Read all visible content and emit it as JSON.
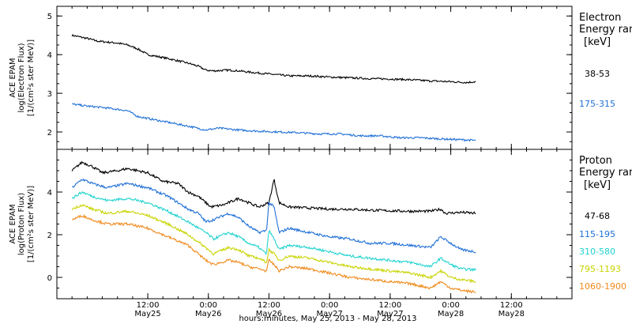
{
  "chart_data": {
    "type": "line",
    "x_axis": {
      "title": "hours:minutes, May 25, 2013 - May 28, 2013",
      "range_hours": [
        0,
        102
      ],
      "ticks": [
        {
          "hours": 18,
          "time": "12:00",
          "day": "May25"
        },
        {
          "hours": 30,
          "time": "0:00",
          "day": "May26"
        },
        {
          "hours": 42,
          "time": "12:00",
          "day": "May26"
        },
        {
          "hours": 54,
          "time": "0:00",
          "day": "May27"
        },
        {
          "hours": 66,
          "time": "12:00",
          "day": "May27"
        },
        {
          "hours": 78,
          "time": "0:00",
          "day": "May28"
        },
        {
          "hours": 90,
          "time": "12:00",
          "day": "May28"
        }
      ]
    },
    "panels": [
      {
        "ylabel": [
          "ACE EPAM",
          "log(Electron Flux)",
          "[1/(cm²s ster MeV)]"
        ],
        "ylim": [
          1.55,
          5.25
        ],
        "yticks": [
          2,
          3,
          4,
          5
        ],
        "legend_title": [
          "Electron",
          "Energy ran"
        ],
        "legend_unit": "[keV]",
        "series": [
          {
            "name": "38-53",
            "color": "#000000",
            "points": [
              [
                3,
                4.5
              ],
              [
                6,
                4.42
              ],
              [
                8,
                4.35
              ],
              [
                12,
                4.3
              ],
              [
                14,
                4.25
              ],
              [
                16,
                4.15
              ],
              [
                18,
                4.0
              ],
              [
                22,
                3.9
              ],
              [
                26,
                3.78
              ],
              [
                28,
                3.7
              ],
              [
                29.5,
                3.6
              ],
              [
                31,
                3.58
              ],
              [
                34,
                3.6
              ],
              [
                36,
                3.58
              ],
              [
                38,
                3.55
              ],
              [
                42,
                3.5
              ],
              [
                46,
                3.45
              ],
              [
                50,
                3.45
              ],
              [
                54,
                3.42
              ],
              [
                58,
                3.4
              ],
              [
                62,
                3.38
              ],
              [
                66,
                3.37
              ],
              [
                70,
                3.35
              ],
              [
                74,
                3.32
              ],
              [
                78,
                3.3
              ],
              [
                81,
                3.28
              ],
              [
                83,
                3.3
              ]
            ]
          },
          {
            "name": "175-315",
            "color": "#1f6fd6",
            "points": [
              [
                3,
                2.72
              ],
              [
                6,
                2.67
              ],
              [
                10,
                2.62
              ],
              [
                14,
                2.55
              ],
              [
                16,
                2.4
              ],
              [
                18,
                2.35
              ],
              [
                22,
                2.25
              ],
              [
                26,
                2.15
              ],
              [
                29.5,
                2.05
              ],
              [
                32,
                2.1
              ],
              [
                36,
                2.05
              ],
              [
                40,
                2.02
              ],
              [
                44,
                2.0
              ],
              [
                48,
                1.98
              ],
              [
                52,
                1.95
              ],
              [
                56,
                1.95
              ],
              [
                60,
                1.9
              ],
              [
                64,
                1.9
              ],
              [
                68,
                1.85
              ],
              [
                72,
                1.85
              ],
              [
                76,
                1.82
              ],
              [
                80,
                1.8
              ],
              [
                83,
                1.78
              ]
            ]
          }
        ]
      },
      {
        "ylabel": [
          "ACE EPAM",
          "log(Proton Flux)",
          "[1/(cm²s ster MeV)]"
        ],
        "ylim": [
          -1.0,
          6.0
        ],
        "yticks": [
          0,
          2,
          4
        ],
        "legend_title": [
          "Proton",
          "Energy ran"
        ],
        "legend_unit": "[keV]",
        "series": [
          {
            "name": "47-68",
            "color": "#000000",
            "points": [
              [
                3,
                5.0
              ],
              [
                5,
                5.4
              ],
              [
                7,
                5.2
              ],
              [
                9,
                4.9
              ],
              [
                12,
                5.0
              ],
              [
                14,
                5.1
              ],
              [
                18,
                4.9
              ],
              [
                21,
                4.5
              ],
              [
                24,
                4.4
              ],
              [
                26,
                4.0
              ],
              [
                28,
                3.8
              ],
              [
                29.5,
                3.5
              ],
              [
                30.5,
                3.3
              ],
              [
                33,
                3.4
              ],
              [
                36,
                3.7
              ],
              [
                38,
                3.5
              ],
              [
                40,
                3.3
              ],
              [
                42,
                3.5
              ],
              [
                43,
                4.6
              ],
              [
                44,
                3.5
              ],
              [
                46,
                3.3
              ],
              [
                50,
                3.25
              ],
              [
                54,
                3.2
              ],
              [
                58,
                3.2
              ],
              [
                62,
                3.15
              ],
              [
                66,
                3.12
              ],
              [
                70,
                3.1
              ],
              [
                74,
                3.1
              ],
              [
                76,
                3.2
              ],
              [
                77,
                3.0
              ],
              [
                80,
                3.05
              ],
              [
                83,
                3.0
              ]
            ]
          },
          {
            "name": "115-195",
            "color": "#1f6fd6",
            "points": [
              [
                3,
                4.2
              ],
              [
                5,
                4.6
              ],
              [
                7,
                4.4
              ],
              [
                10,
                4.2
              ],
              [
                14,
                4.4
              ],
              [
                18,
                4.2
              ],
              [
                22,
                3.8
              ],
              [
                26,
                3.2
              ],
              [
                28,
                3.0
              ],
              [
                29.5,
                2.6
              ],
              [
                31,
                2.7
              ],
              [
                34,
                3.0
              ],
              [
                36,
                2.8
              ],
              [
                38,
                2.4
              ],
              [
                40,
                2.1
              ],
              [
                41.5,
                2.2
              ],
              [
                42,
                3.5
              ],
              [
                43,
                3.3
              ],
              [
                44,
                2.1
              ],
              [
                46,
                2.3
              ],
              [
                50,
                2.1
              ],
              [
                54,
                1.9
              ],
              [
                58,
                1.8
              ],
              [
                62,
                1.6
              ],
              [
                66,
                1.6
              ],
              [
                70,
                1.5
              ],
              [
                74,
                1.4
              ],
              [
                76,
                1.9
              ],
              [
                78,
                1.6
              ],
              [
                80,
                1.3
              ],
              [
                83,
                1.2
              ]
            ]
          },
          {
            "name": "310-580",
            "color": "#22d3cf",
            "points": [
              [
                3,
                3.7
              ],
              [
                5,
                4.0
              ],
              [
                7,
                3.8
              ],
              [
                10,
                3.6
              ],
              [
                14,
                3.7
              ],
              [
                18,
                3.5
              ],
              [
                22,
                3.1
              ],
              [
                26,
                2.6
              ],
              [
                29.5,
                2.1
              ],
              [
                31,
                1.8
              ],
              [
                34,
                2.1
              ],
              [
                36,
                1.9
              ],
              [
                38,
                1.6
              ],
              [
                40,
                1.4
              ],
              [
                41.5,
                1.1
              ],
              [
                42,
                2.2
              ],
              [
                43,
                1.8
              ],
              [
                44,
                1.3
              ],
              [
                46,
                1.5
              ],
              [
                50,
                1.4
              ],
              [
                54,
                1.2
              ],
              [
                58,
                1.0
              ],
              [
                62,
                0.9
              ],
              [
                66,
                0.8
              ],
              [
                70,
                0.7
              ],
              [
                74,
                0.5
              ],
              [
                76,
                0.9
              ],
              [
                78,
                0.6
              ],
              [
                80,
                0.4
              ],
              [
                83,
                0.35
              ]
            ]
          },
          {
            "name": "795-1193",
            "color": "#c8d400",
            "points": [
              [
                3,
                3.2
              ],
              [
                5,
                3.4
              ],
              [
                7,
                3.2
              ],
              [
                10,
                3.0
              ],
              [
                14,
                3.1
              ],
              [
                18,
                2.9
              ],
              [
                22,
                2.5
              ],
              [
                26,
                2.0
              ],
              [
                29.5,
                1.4
              ],
              [
                31,
                1.1
              ],
              [
                34,
                1.4
              ],
              [
                36,
                1.3
              ],
              [
                38,
                1.0
              ],
              [
                40,
                0.9
              ],
              [
                41.5,
                0.7
              ],
              [
                42,
                1.3
              ],
              [
                43,
                1.1
              ],
              [
                44,
                0.8
              ],
              [
                46,
                1.0
              ],
              [
                50,
                0.9
              ],
              [
                54,
                0.7
              ],
              [
                58,
                0.5
              ],
              [
                62,
                0.4
              ],
              [
                66,
                0.3
              ],
              [
                70,
                0.2
              ],
              [
                74,
                0.0
              ],
              [
                76,
                0.3
              ],
              [
                78,
                0.0
              ],
              [
                80,
                -0.1
              ],
              [
                83,
                -0.2
              ]
            ]
          },
          {
            "name": "1060-1900",
            "color": "#f08a1c",
            "points": [
              [
                3,
                2.7
              ],
              [
                5,
                2.9
              ],
              [
                7,
                2.7
              ],
              [
                10,
                2.5
              ],
              [
                14,
                2.5
              ],
              [
                18,
                2.3
              ],
              [
                22,
                1.9
              ],
              [
                26,
                1.5
              ],
              [
                29.5,
                0.8
              ],
              [
                31,
                0.6
              ],
              [
                34,
                0.8
              ],
              [
                36,
                0.7
              ],
              [
                38,
                0.5
              ],
              [
                40,
                0.4
              ],
              [
                41.5,
                0.3
              ],
              [
                42,
                0.8
              ],
              [
                43,
                0.6
              ],
              [
                44,
                0.3
              ],
              [
                46,
                0.5
              ],
              [
                50,
                0.4
              ],
              [
                54,
                0.2
              ],
              [
                58,
                0.0
              ],
              [
                62,
                -0.1
              ],
              [
                66,
                -0.2
              ],
              [
                70,
                -0.3
              ],
              [
                74,
                -0.5
              ],
              [
                76,
                -0.2
              ],
              [
                78,
                -0.5
              ],
              [
                80,
                -0.6
              ],
              [
                83,
                -0.7
              ]
            ]
          }
        ]
      }
    ]
  }
}
